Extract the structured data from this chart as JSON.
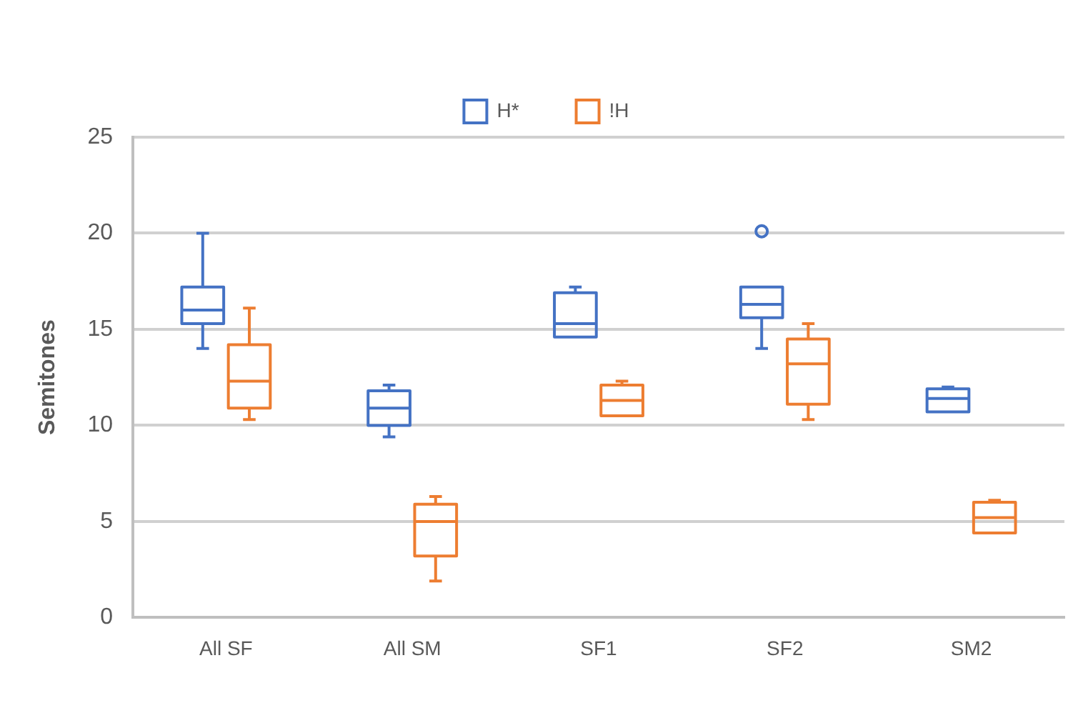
{
  "chart_data": {
    "type": "box",
    "ylabel": "Semitones",
    "categories": [
      "All SF",
      "All SM",
      "SF1",
      "SF2",
      "SM2"
    ],
    "series": [
      {
        "name": "H*",
        "color": "#4472c4",
        "boxes": [
          {
            "low": 14.0,
            "q1": 15.3,
            "median": 16.0,
            "q3": 17.2,
            "high": 20.0
          },
          {
            "low": 9.4,
            "q1": 10.0,
            "median": 10.9,
            "q3": 11.8,
            "high": 12.1
          },
          {
            "low": 14.6,
            "q1": 14.6,
            "median": 15.3,
            "q3": 16.9,
            "high": 17.2
          },
          {
            "low": 14.0,
            "q1": 15.6,
            "median": 16.3,
            "q3": 17.2,
            "high": 17.2,
            "outliers": [
              20.1
            ]
          },
          {
            "low": 10.7,
            "q1": 10.7,
            "median": 11.4,
            "q3": 11.9,
            "high": 12.0
          }
        ]
      },
      {
        "name": "!H",
        "color": "#ed7d31",
        "boxes": [
          {
            "low": 10.3,
            "q1": 10.9,
            "median": 12.3,
            "q3": 14.2,
            "high": 16.1
          },
          {
            "low": 1.9,
            "q1": 3.2,
            "median": 5.0,
            "q3": 5.9,
            "high": 6.3
          },
          {
            "low": 10.5,
            "q1": 10.5,
            "median": 11.3,
            "q3": 12.1,
            "high": 12.3
          },
          {
            "low": 10.3,
            "q1": 11.1,
            "median": 13.2,
            "q3": 14.5,
            "high": 15.3
          },
          {
            "low": 4.4,
            "q1": 4.4,
            "median": 5.2,
            "q3": 6.0,
            "high": 6.1
          }
        ]
      }
    ],
    "ylim": [
      0,
      25
    ],
    "yticks": [
      0,
      5,
      10,
      15,
      20,
      25
    ],
    "grid": "y",
    "legend": "top"
  }
}
